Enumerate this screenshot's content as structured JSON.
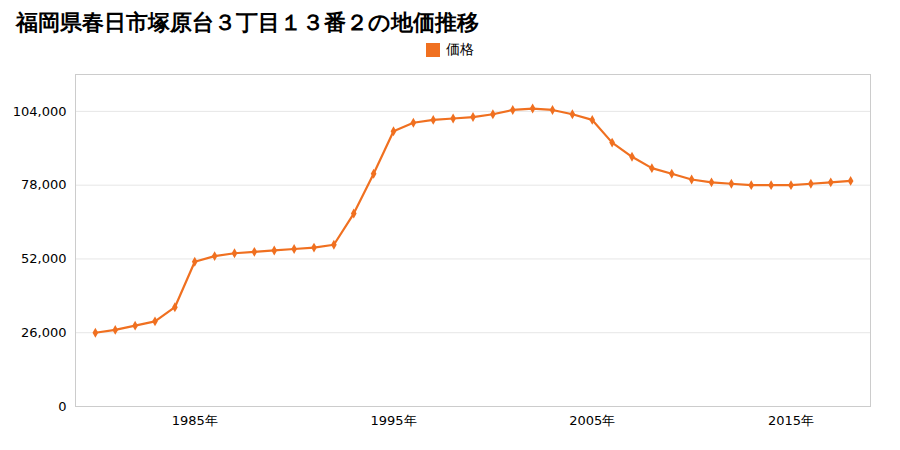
{
  "chart_data": {
    "type": "line",
    "title": "福岡県春日市塚原台３丁目１３番２の地価推移",
    "x": [
      1980,
      1981,
      1982,
      1983,
      1984,
      1985,
      1986,
      1987,
      1988,
      1989,
      1990,
      1991,
      1992,
      1993,
      1994,
      1995,
      1996,
      1997,
      1998,
      1999,
      2000,
      2001,
      2002,
      2003,
      2004,
      2005,
      2006,
      2007,
      2008,
      2009,
      2010,
      2011,
      2012,
      2013,
      2014,
      2015,
      2016,
      2017,
      2018
    ],
    "series": [
      {
        "name": "価格",
        "color": "#f07020",
        "marker": "diamond",
        "values": [
          26000,
          27000,
          28500,
          30000,
          35000,
          51000,
          53000,
          54000,
          54500,
          55000,
          55500,
          56000,
          57000,
          68000,
          82000,
          97000,
          100000,
          101000,
          101500,
          102000,
          103000,
          104500,
          105000,
          104500,
          103000,
          101000,
          93000,
          88000,
          84000,
          82000,
          80000,
          79000,
          78500,
          78000,
          78000,
          78000,
          78500,
          79000,
          79500
        ]
      }
    ],
    "xlim": [
      1979,
      2019
    ],
    "xticks": [
      {
        "value": 1985,
        "label": "1985年"
      },
      {
        "value": 1995,
        "label": "1995年"
      },
      {
        "value": 2005,
        "label": "2005年"
      },
      {
        "value": 2015,
        "label": "2015年"
      }
    ],
    "ylim": [
      0,
      117000
    ],
    "yticks": [
      0,
      {
        "value": 26000,
        "label": "26,000"
      },
      {
        "value": 52000,
        "label": "52,000"
      },
      {
        "value": 78000,
        "label": "78,000"
      },
      {
        "value": 104000,
        "label": "104,000"
      }
    ],
    "grid": true,
    "legend": "top"
  }
}
